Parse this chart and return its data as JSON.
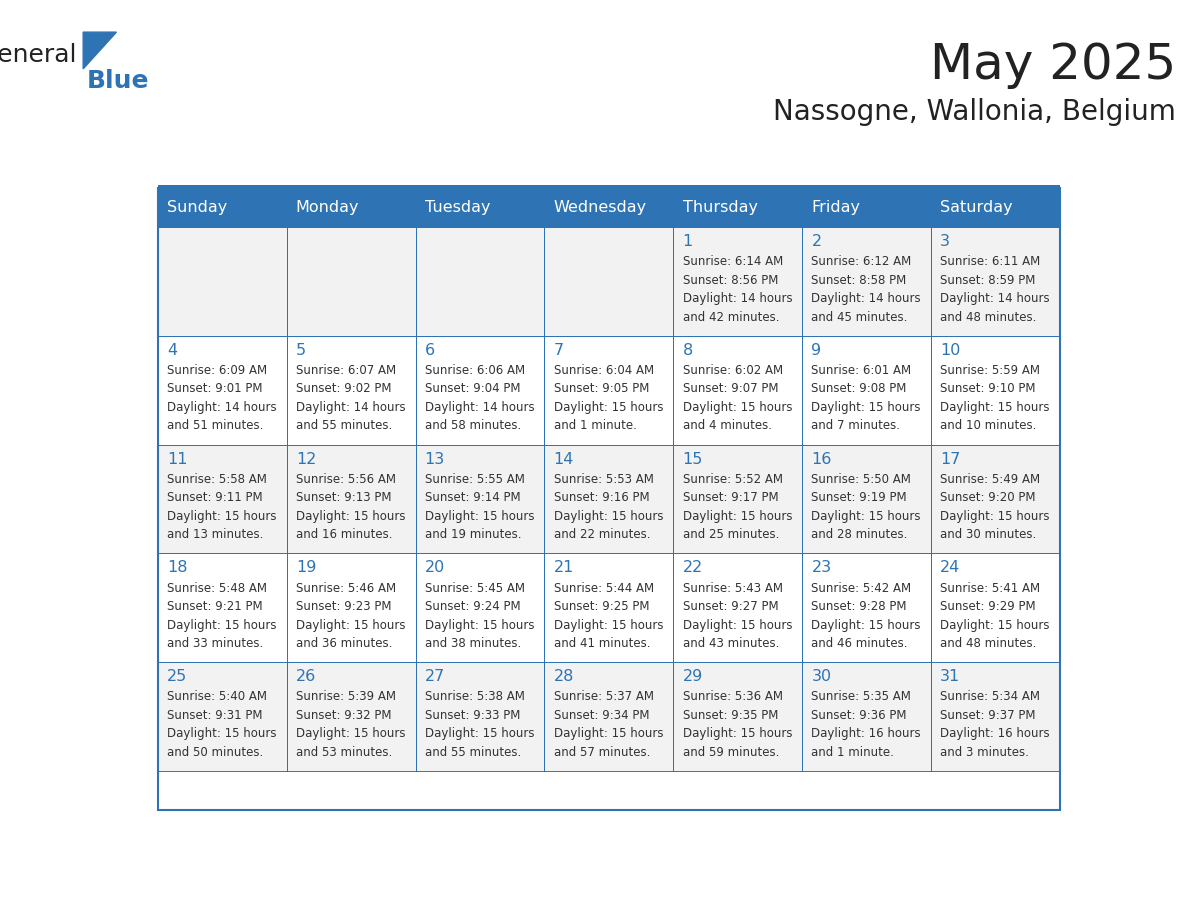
{
  "title": "May 2025",
  "subtitle": "Nassogne, Wallonia, Belgium",
  "header_bg": "#2E74B5",
  "header_text_color": "#FFFFFF",
  "cell_bg_even": "#F2F2F2",
  "cell_bg_odd": "#FFFFFF",
  "cell_border_color": "#2E74B5",
  "day_headers": [
    "Sunday",
    "Monday",
    "Tuesday",
    "Wednesday",
    "Thursday",
    "Friday",
    "Saturday"
  ],
  "title_color": "#222222",
  "subtitle_color": "#222222",
  "logo_text1": "General",
  "logo_text2": "Blue",
  "logo_color1": "#222222",
  "logo_color2": "#2E74B5",
  "weeks": [
    [
      {
        "day": "",
        "info": ""
      },
      {
        "day": "",
        "info": ""
      },
      {
        "day": "",
        "info": ""
      },
      {
        "day": "",
        "info": ""
      },
      {
        "day": "1",
        "info": "Sunrise: 6:14 AM\nSunset: 8:56 PM\nDaylight: 14 hours\nand 42 minutes."
      },
      {
        "day": "2",
        "info": "Sunrise: 6:12 AM\nSunset: 8:58 PM\nDaylight: 14 hours\nand 45 minutes."
      },
      {
        "day": "3",
        "info": "Sunrise: 6:11 AM\nSunset: 8:59 PM\nDaylight: 14 hours\nand 48 minutes."
      }
    ],
    [
      {
        "day": "4",
        "info": "Sunrise: 6:09 AM\nSunset: 9:01 PM\nDaylight: 14 hours\nand 51 minutes."
      },
      {
        "day": "5",
        "info": "Sunrise: 6:07 AM\nSunset: 9:02 PM\nDaylight: 14 hours\nand 55 minutes."
      },
      {
        "day": "6",
        "info": "Sunrise: 6:06 AM\nSunset: 9:04 PM\nDaylight: 14 hours\nand 58 minutes."
      },
      {
        "day": "7",
        "info": "Sunrise: 6:04 AM\nSunset: 9:05 PM\nDaylight: 15 hours\nand 1 minute."
      },
      {
        "day": "8",
        "info": "Sunrise: 6:02 AM\nSunset: 9:07 PM\nDaylight: 15 hours\nand 4 minutes."
      },
      {
        "day": "9",
        "info": "Sunrise: 6:01 AM\nSunset: 9:08 PM\nDaylight: 15 hours\nand 7 minutes."
      },
      {
        "day": "10",
        "info": "Sunrise: 5:59 AM\nSunset: 9:10 PM\nDaylight: 15 hours\nand 10 minutes."
      }
    ],
    [
      {
        "day": "11",
        "info": "Sunrise: 5:58 AM\nSunset: 9:11 PM\nDaylight: 15 hours\nand 13 minutes."
      },
      {
        "day": "12",
        "info": "Sunrise: 5:56 AM\nSunset: 9:13 PM\nDaylight: 15 hours\nand 16 minutes."
      },
      {
        "day": "13",
        "info": "Sunrise: 5:55 AM\nSunset: 9:14 PM\nDaylight: 15 hours\nand 19 minutes."
      },
      {
        "day": "14",
        "info": "Sunrise: 5:53 AM\nSunset: 9:16 PM\nDaylight: 15 hours\nand 22 minutes."
      },
      {
        "day": "15",
        "info": "Sunrise: 5:52 AM\nSunset: 9:17 PM\nDaylight: 15 hours\nand 25 minutes."
      },
      {
        "day": "16",
        "info": "Sunrise: 5:50 AM\nSunset: 9:19 PM\nDaylight: 15 hours\nand 28 minutes."
      },
      {
        "day": "17",
        "info": "Sunrise: 5:49 AM\nSunset: 9:20 PM\nDaylight: 15 hours\nand 30 minutes."
      }
    ],
    [
      {
        "day": "18",
        "info": "Sunrise: 5:48 AM\nSunset: 9:21 PM\nDaylight: 15 hours\nand 33 minutes."
      },
      {
        "day": "19",
        "info": "Sunrise: 5:46 AM\nSunset: 9:23 PM\nDaylight: 15 hours\nand 36 minutes."
      },
      {
        "day": "20",
        "info": "Sunrise: 5:45 AM\nSunset: 9:24 PM\nDaylight: 15 hours\nand 38 minutes."
      },
      {
        "day": "21",
        "info": "Sunrise: 5:44 AM\nSunset: 9:25 PM\nDaylight: 15 hours\nand 41 minutes."
      },
      {
        "day": "22",
        "info": "Sunrise: 5:43 AM\nSunset: 9:27 PM\nDaylight: 15 hours\nand 43 minutes."
      },
      {
        "day": "23",
        "info": "Sunrise: 5:42 AM\nSunset: 9:28 PM\nDaylight: 15 hours\nand 46 minutes."
      },
      {
        "day": "24",
        "info": "Sunrise: 5:41 AM\nSunset: 9:29 PM\nDaylight: 15 hours\nand 48 minutes."
      }
    ],
    [
      {
        "day": "25",
        "info": "Sunrise: 5:40 AM\nSunset: 9:31 PM\nDaylight: 15 hours\nand 50 minutes."
      },
      {
        "day": "26",
        "info": "Sunrise: 5:39 AM\nSunset: 9:32 PM\nDaylight: 15 hours\nand 53 minutes."
      },
      {
        "day": "27",
        "info": "Sunrise: 5:38 AM\nSunset: 9:33 PM\nDaylight: 15 hours\nand 55 minutes."
      },
      {
        "day": "28",
        "info": "Sunrise: 5:37 AM\nSunset: 9:34 PM\nDaylight: 15 hours\nand 57 minutes."
      },
      {
        "day": "29",
        "info": "Sunrise: 5:36 AM\nSunset: 9:35 PM\nDaylight: 15 hours\nand 59 minutes."
      },
      {
        "day": "30",
        "info": "Sunrise: 5:35 AM\nSunset: 9:36 PM\nDaylight: 16 hours\nand 1 minute."
      },
      {
        "day": "31",
        "info": "Sunrise: 5:34 AM\nSunset: 9:37 PM\nDaylight: 16 hours\nand 3 minutes."
      }
    ]
  ]
}
